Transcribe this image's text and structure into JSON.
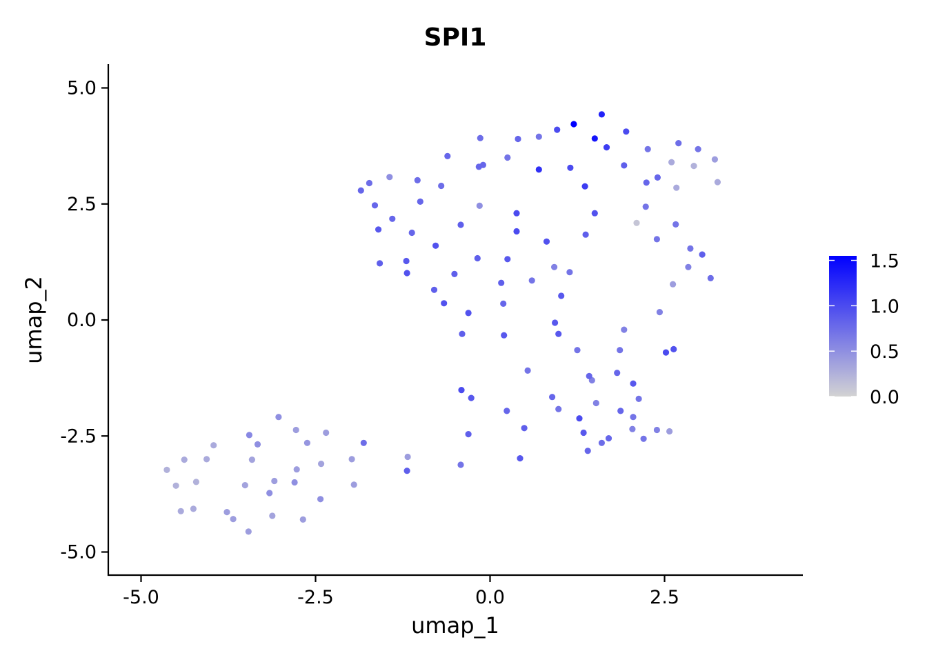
{
  "chart_data": {
    "type": "scatter",
    "title": "SPI1",
    "xlabel": "umap_1",
    "ylabel": "umap_2",
    "xlim": [
      -5.4,
      4.5
    ],
    "ylim": [
      -5.5,
      5.5
    ],
    "x_ticks": [
      -5.0,
      -2.5,
      0.0,
      2.5
    ],
    "x_tick_labels": [
      "-5.0",
      "-2.5",
      "0.0",
      "2.5"
    ],
    "y_ticks": [
      -5.0,
      -2.5,
      0.0,
      2.5,
      5.0
    ],
    "y_tick_labels": [
      "-5.0",
      "-2.5",
      "0.0",
      "2.5",
      "5.0"
    ],
    "grid": false,
    "legend": {
      "position": "right",
      "type": "colorbar",
      "range": [
        0.0,
        1.55
      ],
      "ticks": [
        0.0,
        0.5,
        1.0,
        1.5
      ],
      "tick_labels": [
        "0.0",
        "0.5",
        "1.0",
        "1.5"
      ],
      "color_low": "#d3d3d3",
      "color_high": "#0000ff"
    },
    "points": [
      {
        "x": 1.2,
        "y": 4.22,
        "v": 1.55
      },
      {
        "x": 1.6,
        "y": 4.43,
        "v": 1.3
      },
      {
        "x": 1.5,
        "y": 3.91,
        "v": 1.4
      },
      {
        "x": 1.67,
        "y": 3.72,
        "v": 1.1
      },
      {
        "x": 1.95,
        "y": 4.06,
        "v": 1.0
      },
      {
        "x": 0.96,
        "y": 4.1,
        "v": 1.0
      },
      {
        "x": 0.7,
        "y": 3.95,
        "v": 0.7
      },
      {
        "x": 0.4,
        "y": 3.9,
        "v": 0.8
      },
      {
        "x": -0.14,
        "y": 3.92,
        "v": 0.75
      },
      {
        "x": 0.25,
        "y": 3.5,
        "v": 0.7
      },
      {
        "x": -0.1,
        "y": 3.34,
        "v": 0.8
      },
      {
        "x": -0.16,
        "y": 3.3,
        "v": 0.8
      },
      {
        "x": -0.61,
        "y": 3.53,
        "v": 0.8
      },
      {
        "x": -0.7,
        "y": 2.89,
        "v": 0.75
      },
      {
        "x": -1.04,
        "y": 3.01,
        "v": 0.75
      },
      {
        "x": -1.44,
        "y": 3.08,
        "v": 0.5
      },
      {
        "x": -1.73,
        "y": 2.95,
        "v": 0.75
      },
      {
        "x": -1.85,
        "y": 2.79,
        "v": 0.8
      },
      {
        "x": -1.65,
        "y": 2.47,
        "v": 0.8
      },
      {
        "x": -1.0,
        "y": 2.55,
        "v": 0.8
      },
      {
        "x": -1.4,
        "y": 2.18,
        "v": 0.8
      },
      {
        "x": -1.6,
        "y": 1.95,
        "v": 0.9
      },
      {
        "x": -1.12,
        "y": 1.88,
        "v": 0.8
      },
      {
        "x": -1.58,
        "y": 1.22,
        "v": 0.85
      },
      {
        "x": -1.2,
        "y": 1.27,
        "v": 0.9
      },
      {
        "x": -1.19,
        "y": 1.01,
        "v": 0.95
      },
      {
        "x": -0.78,
        "y": 1.6,
        "v": 0.95
      },
      {
        "x": -0.42,
        "y": 2.05,
        "v": 0.85
      },
      {
        "x": -0.15,
        "y": 2.46,
        "v": 0.5
      },
      {
        "x": 0.7,
        "y": 3.24,
        "v": 1.2
      },
      {
        "x": 1.15,
        "y": 3.28,
        "v": 1.0
      },
      {
        "x": 1.36,
        "y": 2.88,
        "v": 1.1
      },
      {
        "x": 1.5,
        "y": 2.3,
        "v": 0.95
      },
      {
        "x": 1.92,
        "y": 3.33,
        "v": 0.85
      },
      {
        "x": 2.26,
        "y": 3.68,
        "v": 0.7
      },
      {
        "x": 2.7,
        "y": 3.81,
        "v": 0.75
      },
      {
        "x": 2.98,
        "y": 3.68,
        "v": 0.7
      },
      {
        "x": 3.22,
        "y": 3.46,
        "v": 0.4
      },
      {
        "x": 2.6,
        "y": 3.4,
        "v": 0.3
      },
      {
        "x": 2.92,
        "y": 3.32,
        "v": 0.25
      },
      {
        "x": 3.26,
        "y": 2.97,
        "v": 0.3
      },
      {
        "x": 2.4,
        "y": 3.07,
        "v": 0.8
      },
      {
        "x": 2.24,
        "y": 2.96,
        "v": 0.8
      },
      {
        "x": 2.67,
        "y": 2.85,
        "v": 0.3
      },
      {
        "x": 2.23,
        "y": 2.44,
        "v": 0.7
      },
      {
        "x": 2.1,
        "y": 2.09,
        "v": 0.1
      },
      {
        "x": 2.66,
        "y": 2.06,
        "v": 0.7
      },
      {
        "x": 2.39,
        "y": 1.74,
        "v": 0.7
      },
      {
        "x": 2.87,
        "y": 1.54,
        "v": 0.7
      },
      {
        "x": 3.04,
        "y": 1.41,
        "v": 0.85
      },
      {
        "x": 2.84,
        "y": 1.14,
        "v": 0.6
      },
      {
        "x": 3.16,
        "y": 0.9,
        "v": 0.75
      },
      {
        "x": 2.62,
        "y": 0.77,
        "v": 0.4
      },
      {
        "x": 0.38,
        "y": 2.3,
        "v": 1.0
      },
      {
        "x": 0.38,
        "y": 1.91,
        "v": 1.0
      },
      {
        "x": 0.81,
        "y": 1.69,
        "v": 0.95
      },
      {
        "x": 1.37,
        "y": 1.84,
        "v": 0.85
      },
      {
        "x": 0.25,
        "y": 1.31,
        "v": 0.9
      },
      {
        "x": -0.18,
        "y": 1.33,
        "v": 0.85
      },
      {
        "x": 0.92,
        "y": 1.14,
        "v": 0.6
      },
      {
        "x": 1.14,
        "y": 1.03,
        "v": 0.7
      },
      {
        "x": -0.51,
        "y": 0.99,
        "v": 0.85
      },
      {
        "x": 0.6,
        "y": 0.85,
        "v": 0.7
      },
      {
        "x": 0.16,
        "y": 0.8,
        "v": 0.85
      },
      {
        "x": 1.02,
        "y": 0.52,
        "v": 0.9
      },
      {
        "x": -0.8,
        "y": 0.65,
        "v": 0.85
      },
      {
        "x": -0.66,
        "y": 0.36,
        "v": 0.95
      },
      {
        "x": 0.19,
        "y": 0.35,
        "v": 0.8
      },
      {
        "x": -0.31,
        "y": 0.15,
        "v": 0.95
      },
      {
        "x": 2.43,
        "y": 0.17,
        "v": 0.6
      },
      {
        "x": 0.93,
        "y": -0.06,
        "v": 0.9
      },
      {
        "x": 1.92,
        "y": -0.21,
        "v": 0.6
      },
      {
        "x": -0.4,
        "y": -0.3,
        "v": 0.85
      },
      {
        "x": 0.2,
        "y": -0.33,
        "v": 0.9
      },
      {
        "x": 0.98,
        "y": -0.3,
        "v": 0.9
      },
      {
        "x": 1.25,
        "y": -0.65,
        "v": 0.7
      },
      {
        "x": 1.86,
        "y": -0.65,
        "v": 0.7
      },
      {
        "x": 2.63,
        "y": -0.63,
        "v": 0.95
      },
      {
        "x": 2.52,
        "y": -0.7,
        "v": 1.0
      },
      {
        "x": 0.54,
        "y": -1.09,
        "v": 0.7
      },
      {
        "x": 1.42,
        "y": -1.21,
        "v": 0.8
      },
      {
        "x": 1.46,
        "y": -1.3,
        "v": 0.6
      },
      {
        "x": 1.82,
        "y": -1.14,
        "v": 0.8
      },
      {
        "x": 2.05,
        "y": -1.37,
        "v": 0.9
      },
      {
        "x": -0.41,
        "y": -1.51,
        "v": 1.0
      },
      {
        "x": -0.27,
        "y": -1.68,
        "v": 0.9
      },
      {
        "x": 0.89,
        "y": -1.66,
        "v": 0.8
      },
      {
        "x": 1.52,
        "y": -1.79,
        "v": 0.6
      },
      {
        "x": 2.13,
        "y": -1.7,
        "v": 0.7
      },
      {
        "x": 0.24,
        "y": -1.96,
        "v": 0.8
      },
      {
        "x": 0.98,
        "y": -1.92,
        "v": 0.7
      },
      {
        "x": 1.87,
        "y": -1.96,
        "v": 0.8
      },
      {
        "x": 2.05,
        "y": -2.09,
        "v": 0.7
      },
      {
        "x": 1.28,
        "y": -2.12,
        "v": 1.0
      },
      {
        "x": 0.49,
        "y": -2.33,
        "v": 0.85
      },
      {
        "x": 2.04,
        "y": -2.35,
        "v": 0.6
      },
      {
        "x": 2.39,
        "y": -2.37,
        "v": 0.6
      },
      {
        "x": 2.57,
        "y": -2.4,
        "v": 0.4
      },
      {
        "x": -0.31,
        "y": -2.46,
        "v": 0.85
      },
      {
        "x": 1.34,
        "y": -2.43,
        "v": 0.9
      },
      {
        "x": 2.2,
        "y": -2.56,
        "v": 0.7
      },
      {
        "x": 1.7,
        "y": -2.55,
        "v": 0.8
      },
      {
        "x": 1.6,
        "y": -2.65,
        "v": 0.75
      },
      {
        "x": 1.4,
        "y": -2.82,
        "v": 0.8
      },
      {
        "x": 0.43,
        "y": -2.98,
        "v": 0.9
      },
      {
        "x": -0.42,
        "y": -3.12,
        "v": 0.7
      },
      {
        "x": -1.18,
        "y": -2.95,
        "v": 0.4
      },
      {
        "x": -1.19,
        "y": -3.25,
        "v": 0.85
      },
      {
        "x": -1.81,
        "y": -2.65,
        "v": 0.75
      },
      {
        "x": -1.98,
        "y": -3.0,
        "v": 0.4
      },
      {
        "x": -1.95,
        "y": -3.55,
        "v": 0.4
      },
      {
        "x": -2.35,
        "y": -2.43,
        "v": 0.4
      },
      {
        "x": -2.62,
        "y": -2.65,
        "v": 0.45
      },
      {
        "x": -2.78,
        "y": -2.37,
        "v": 0.4
      },
      {
        "x": -2.42,
        "y": -3.1,
        "v": 0.35
      },
      {
        "x": -2.77,
        "y": -3.22,
        "v": 0.4
      },
      {
        "x": -2.8,
        "y": -3.5,
        "v": 0.5
      },
      {
        "x": -2.43,
        "y": -3.86,
        "v": 0.5
      },
      {
        "x": -3.03,
        "y": -2.09,
        "v": 0.5
      },
      {
        "x": -3.45,
        "y": -2.48,
        "v": 0.55
      },
      {
        "x": -3.33,
        "y": -2.68,
        "v": 0.5
      },
      {
        "x": -3.41,
        "y": -3.01,
        "v": 0.35
      },
      {
        "x": -3.09,
        "y": -3.47,
        "v": 0.4
      },
      {
        "x": -3.16,
        "y": -3.73,
        "v": 0.5
      },
      {
        "x": -3.51,
        "y": -3.56,
        "v": 0.35
      },
      {
        "x": -3.12,
        "y": -4.22,
        "v": 0.35
      },
      {
        "x": -2.68,
        "y": -4.3,
        "v": 0.4
      },
      {
        "x": -3.77,
        "y": -4.14,
        "v": 0.4
      },
      {
        "x": -3.68,
        "y": -4.29,
        "v": 0.4
      },
      {
        "x": -3.46,
        "y": -4.56,
        "v": 0.4
      },
      {
        "x": -3.96,
        "y": -2.7,
        "v": 0.3
      },
      {
        "x": -4.06,
        "y": -3.0,
        "v": 0.3
      },
      {
        "x": -4.38,
        "y": -3.01,
        "v": 0.3
      },
      {
        "x": -4.63,
        "y": -3.23,
        "v": 0.25
      },
      {
        "x": -4.5,
        "y": -3.57,
        "v": 0.25
      },
      {
        "x": -4.21,
        "y": -3.49,
        "v": 0.25
      },
      {
        "x": -4.43,
        "y": -4.12,
        "v": 0.3
      },
      {
        "x": -4.25,
        "y": -4.07,
        "v": 0.3
      }
    ]
  }
}
